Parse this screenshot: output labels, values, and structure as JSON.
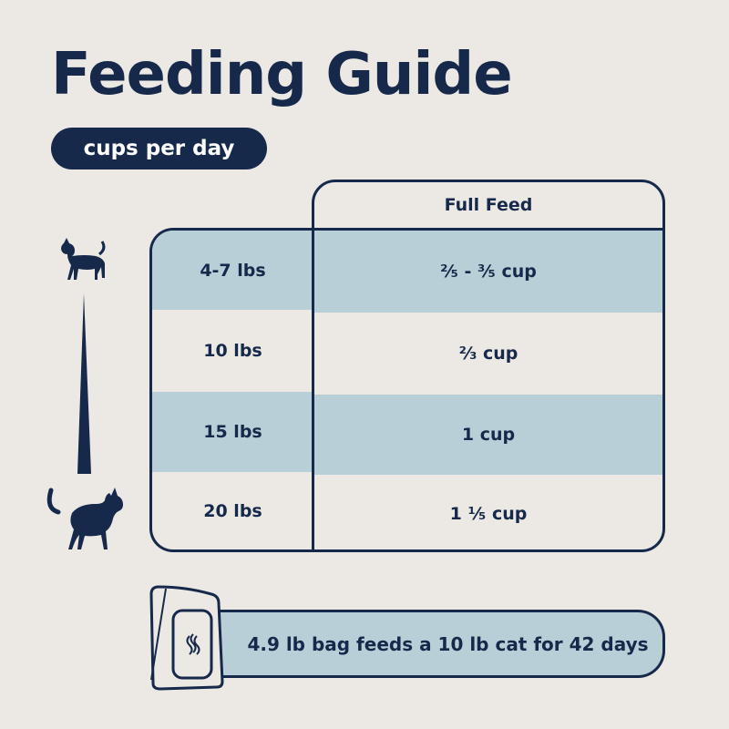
{
  "title": "Feeding Guide",
  "unit_label": "cups per day",
  "table": {
    "column_header": "Full Feed",
    "rows": [
      {
        "weight": "4-7 lbs",
        "amount": "²⁄₅ - ³⁄₅ cup"
      },
      {
        "weight": "10 lbs",
        "amount": "²⁄₃ cup"
      },
      {
        "weight": "15 lbs",
        "amount": "1 cup"
      },
      {
        "weight": "20 lbs",
        "amount": "1 ¹⁄₅ cup"
      }
    ]
  },
  "bag_note": "4.9 lb bag feeds a 10 lb cat for 42 days",
  "colors": {
    "navy": "#16294a",
    "light_blue": "#b9cfd8",
    "background": "#ece8e4"
  },
  "icons": [
    "small-cat-icon",
    "large-cat-icon",
    "size-wedge-icon",
    "food-bag-icon"
  ]
}
